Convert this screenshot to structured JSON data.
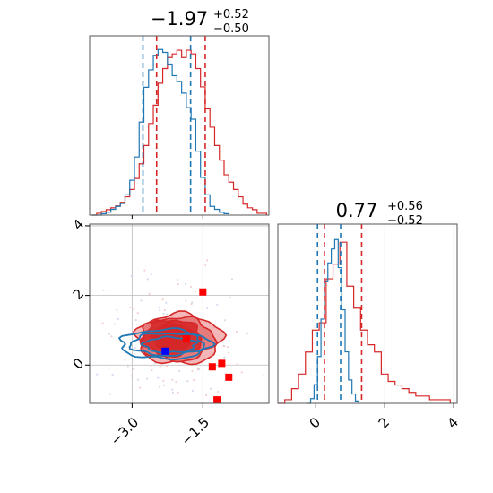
{
  "chart_data": {
    "type": "corner",
    "parameters": [
      {
        "title_value": "-1.97",
        "title_upper": "+0.52",
        "title_lower": "-0.50",
        "range": [
          -3.9,
          -0.1
        ],
        "ticks": [
          -3.0,
          -1.5
        ],
        "tick_labels": [
          "−3.0",
          "−1.5"
        ],
        "red_quantiles": [
          -2.48,
          -1.45
        ],
        "blue_quantiles": [
          -2.77,
          -1.76
        ]
      },
      {
        "title_value": "0.77",
        "title_upper": "+0.56",
        "title_lower": "-0.52",
        "range": [
          -1.1,
          4.1
        ],
        "ticks": [
          0,
          2,
          4
        ],
        "tick_labels": [
          "0",
          "2",
          "4"
        ],
        "red_quantiles": [
          0.25,
          1.33
        ],
        "blue_quantiles": [
          0.05,
          0.72
        ]
      }
    ],
    "joint": {
      "y_range": [
        -1.1,
        4.05
      ],
      "y_ticks": [
        0,
        2,
        4
      ],
      "y_tick_labels": [
        "0",
        "2",
        "4"
      ]
    },
    "series": [
      {
        "color": "#d62728",
        "hist_x_centers": [
          -3.8,
          -3.7,
          -3.6,
          -3.5,
          -3.4,
          -3.3,
          -3.2,
          -3.1,
          -3.0,
          -2.9,
          -2.8,
          -2.7,
          -2.6,
          -2.5,
          -2.4,
          -2.3,
          -2.2,
          -2.1,
          -2.0,
          -1.9,
          -1.8,
          -1.7,
          -1.6,
          -1.5,
          -1.4,
          -1.3,
          -1.2,
          -1.1,
          -1.0,
          -0.9,
          -0.8,
          -0.7,
          -0.6,
          -0.5,
          -0.4,
          -0.3,
          -0.2
        ],
        "hist_x_counts": [
          0,
          1,
          2,
          3,
          4,
          5,
          7,
          10,
          14,
          20,
          28,
          38,
          50,
          60,
          72,
          80,
          86,
          88,
          90,
          86,
          90,
          88,
          80,
          70,
          58,
          48,
          38,
          30,
          22,
          18,
          14,
          10,
          6,
          4,
          3,
          1,
          1
        ],
        "hist_y_centers": [
          -1.0,
          -0.8,
          -0.6,
          -0.4,
          -0.2,
          0.0,
          0.2,
          0.4,
          0.6,
          0.8,
          1.0,
          1.2,
          1.4,
          1.6,
          1.8,
          2.0,
          2.2,
          2.4,
          2.6,
          2.8,
          3.0,
          3.2,
          3.4,
          3.6,
          3.8
        ],
        "hist_y_counts": [
          0,
          1,
          4,
          8,
          14,
          20,
          22,
          34,
          38,
          44,
          32,
          26,
          20,
          16,
          14,
          8,
          6,
          5,
          4,
          3,
          2,
          2,
          1,
          1,
          1
        ],
        "contour_levels": [
          {
            "cx": -2.0,
            "cy": 0.75,
            "rx": 0.9,
            "ry": 0.72,
            "fill": "#f2a9a9"
          },
          {
            "cx": -2.05,
            "cy": 0.75,
            "rx": 0.78,
            "ry": 0.62,
            "fill": "#e57373"
          },
          {
            "cx": -2.15,
            "cy": 0.78,
            "rx": 0.62,
            "ry": 0.52,
            "fill": "#d62728"
          },
          {
            "cx": -2.15,
            "cy": 0.8,
            "rx": 0.42,
            "ry": 0.38,
            "fill": "#d62728"
          }
        ],
        "markers": [
          {
            "x": -1.5,
            "y": 2.1
          },
          {
            "x": -1.85,
            "y": 0.75
          },
          {
            "x": -1.1,
            "y": 0.05
          },
          {
            "x": -1.3,
            "y": -0.05
          },
          {
            "x": -0.95,
            "y": -0.35
          },
          {
            "x": -1.2,
            "y": -1.0
          }
        ]
      },
      {
        "color": "#1f77b4",
        "hist_x_centers": [
          -3.8,
          -3.7,
          -3.6,
          -3.5,
          -3.4,
          -3.3,
          -3.2,
          -3.1,
          -3.0,
          -2.9,
          -2.8,
          -2.7,
          -2.6,
          -2.5,
          -2.4,
          -2.3,
          -2.2,
          -2.1,
          -2.0,
          -1.9,
          -1.8,
          -1.7,
          -1.6,
          -1.5,
          -1.4,
          -1.3,
          -1.2,
          -1.1,
          -1.0
        ],
        "hist_x_counts": [
          0,
          0,
          1,
          2,
          4,
          6,
          8,
          14,
          24,
          40,
          64,
          88,
          100,
          110,
          114,
          112,
          104,
          96,
          92,
          84,
          74,
          66,
          44,
          26,
          14,
          6,
          4,
          2,
          1
        ],
        "hist_y_centers": [
          -0.2,
          -0.1,
          0.0,
          0.1,
          0.2,
          0.3,
          0.4,
          0.5,
          0.6,
          0.7,
          0.8,
          0.9,
          1.0,
          1.1,
          1.2
        ],
        "hist_y_counts": [
          0,
          2,
          8,
          20,
          36,
          52,
          60,
          66,
          70,
          58,
          40,
          22,
          10,
          4,
          1
        ],
        "contour_levels": [
          {
            "cx": -2.3,
            "cy": 0.6,
            "rx": 0.95,
            "ry": 0.42
          },
          {
            "cx": -2.25,
            "cy": 0.6,
            "rx": 0.78,
            "ry": 0.32
          },
          {
            "cx": -2.2,
            "cy": 0.58,
            "rx": 0.55,
            "ry": 0.22
          }
        ],
        "markers": [
          {
            "x": -2.3,
            "y": 0.4
          }
        ]
      }
    ]
  }
}
